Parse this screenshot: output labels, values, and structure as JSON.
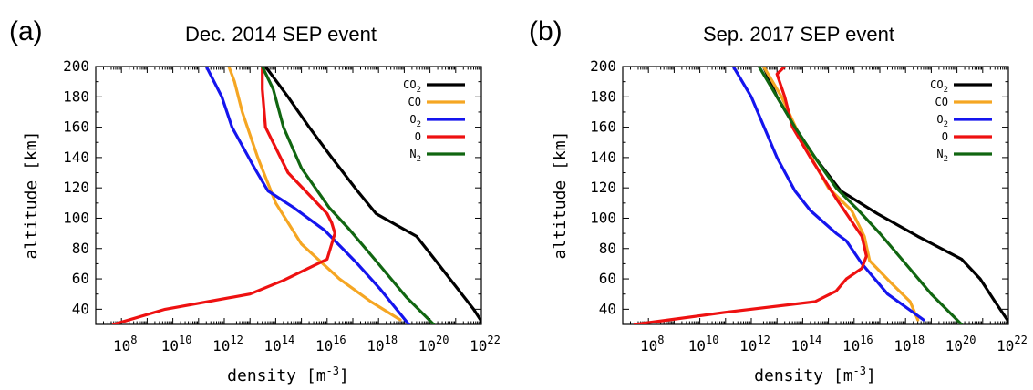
{
  "chart_data": [
    {
      "type": "line",
      "panel_letter": "(a)",
      "title": "Dec. 2014 SEP event",
      "xlabel": "density [m",
      "xlabel_exponent": "-3",
      "xlabel_close": "]",
      "ylabel": "altitude [km]",
      "xscale": "log",
      "xlim": [
        10000000.0,
        1e+22
      ],
      "ylim": [
        30,
        200
      ],
      "x_ticks": [
        {
          "base": "10",
          "exp": "8",
          "value": 100000000.0
        },
        {
          "base": "10",
          "exp": "10",
          "value": 10000000000.0
        },
        {
          "base": "10",
          "exp": "12",
          "value": 1000000000000.0
        },
        {
          "base": "10",
          "exp": "14",
          "value": 100000000000000.0
        },
        {
          "base": "10",
          "exp": "16",
          "value": 1e+16
        },
        {
          "base": "10",
          "exp": "18",
          "value": 1e+18
        },
        {
          "base": "10",
          "exp": "20",
          "value": 1e+20
        },
        {
          "base": "10",
          "exp": "22",
          "value": 1e+22
        }
      ],
      "y_ticks": [
        "40",
        "60",
        "80",
        "100",
        "120",
        "140",
        "160",
        "180",
        "200"
      ],
      "legend_position": "top-right",
      "grid": false,
      "series": [
        {
          "name": "CO",
          "sub": "2",
          "color": "#000000",
          "points": [
            [
              1.2e+22,
              30
            ],
            [
              5e+21,
              40
            ],
            [
              6e+20,
              60
            ],
            [
              1.5e+20,
              73
            ],
            [
              3e+19,
              88
            ],
            [
              8e+17,
              103
            ],
            [
              1.5e+17,
              118
            ],
            [
              1.5e+16,
              140
            ],
            [
              2000000000000000.0,
              160
            ],
            [
              300000000000000.0,
              180
            ],
            [
              40000000000000.0,
              200
            ]
          ]
        },
        {
          "name": "CO",
          "sub": "",
          "color": "#f5a623",
          "points": [
            [
              7e+18,
              33
            ],
            [
              5e+17,
              45
            ],
            [
              3e+16,
              60
            ],
            [
              1000000000000000.0,
              83
            ],
            [
              100000000000000.0,
              110
            ],
            [
              20000000000000.0,
              140
            ],
            [
              5000000000000.0,
              170
            ],
            [
              2500000000000.0,
              190
            ],
            [
              1500000000000.0,
              200
            ]
          ]
        },
        {
          "name": "O",
          "sub": "2",
          "color": "#1515ee",
          "points": [
            [
              1.5e+19,
              30
            ],
            [
              1.2e+18,
              53
            ],
            [
              1.5e+17,
              70
            ],
            [
              8000000000000000.0,
              92
            ],
            [
              500000000000000.0,
              107
            ],
            [
              50000000000000.0,
              118
            ],
            [
              15000000000000.0,
              133
            ],
            [
              2000000000000.0,
              160
            ],
            [
              800000000000.0,
              180
            ],
            [
              200000000000.0,
              200
            ]
          ]
        },
        {
          "name": "O",
          "sub": "",
          "color": "#ee1111",
          "points": [
            [
              50000000.0,
              30
            ],
            [
              5000000000.0,
              40
            ],
            [
              10000000000000.0,
              50
            ],
            [
              200000000000000.0,
              59
            ],
            [
              1e+16,
              73
            ],
            [
              2e+16,
              90
            ],
            [
              1.5e+16,
              97
            ],
            [
              1e+16,
              103
            ],
            [
              300000000000000.0,
              130
            ],
            [
              40000000000000.0,
              160
            ],
            [
              30000000000000.0,
              185
            ],
            [
              30000000000000.0,
              200
            ]
          ]
        },
        {
          "name": "N",
          "sub": "2",
          "color": "#116611",
          "points": [
            [
              1.4e+20,
              30
            ],
            [
              1.2e+19,
              48
            ],
            [
              7e+17,
              73
            ],
            [
              7e+16,
              93
            ],
            [
              1.2e+16,
              107
            ],
            [
              1000000000000000.0,
              133
            ],
            [
              200000000000000.0,
              160
            ],
            [
              80000000000000.0,
              185
            ],
            [
              30000000000000.0,
              200
            ]
          ]
        }
      ]
    },
    {
      "type": "line",
      "panel_letter": "(b)",
      "title": "Sep. 2017 SEP event",
      "xlabel": "density [m",
      "xlabel_exponent": "-3",
      "xlabel_close": "]",
      "ylabel": "altitude [km]",
      "xscale": "log",
      "xlim": [
        10000000.0,
        1e+22
      ],
      "ylim": [
        30,
        200
      ],
      "x_ticks": [
        {
          "base": "10",
          "exp": "8",
          "value": 100000000.0
        },
        {
          "base": "10",
          "exp": "10",
          "value": 10000000000.0
        },
        {
          "base": "10",
          "exp": "12",
          "value": 1000000000000.0
        },
        {
          "base": "10",
          "exp": "14",
          "value": 100000000000000.0
        },
        {
          "base": "10",
          "exp": "16",
          "value": 1e+16
        },
        {
          "base": "10",
          "exp": "18",
          "value": 1e+18
        },
        {
          "base": "10",
          "exp": "20",
          "value": 1e+20
        },
        {
          "base": "10",
          "exp": "22",
          "value": 1e+22
        }
      ],
      "y_ticks": [
        "40",
        "60",
        "80",
        "100",
        "120",
        "140",
        "160",
        "180",
        "200"
      ],
      "legend_position": "top-right",
      "grid": false,
      "series": [
        {
          "name": "CO",
          "sub": "2",
          "color": "#000000",
          "points": [
            [
              1e+22,
              32
            ],
            [
              3e+21,
              45
            ],
            [
              8e+20,
              60
            ],
            [
              1.5e+20,
              73
            ],
            [
              3e+18,
              88
            ],
            [
              8e+16,
              103
            ],
            [
              3000000000000000.0,
              118
            ],
            [
              300000000000000.0,
              140
            ],
            [
              50000000000000.0,
              160
            ],
            [
              10000000000000.0,
              180
            ],
            [
              3000000000000.0,
              200
            ]
          ]
        },
        {
          "name": "CO",
          "sub": "",
          "color": "#f5a623",
          "points": [
            [
              3e+18,
              33
            ],
            [
              1.5e+18,
              45
            ],
            [
              2.5e+17,
              58
            ],
            [
              4e+16,
              72
            ],
            [
              2.5e+16,
              88
            ],
            [
              8000000000000000.0,
              105
            ],
            [
              1000000000000000.0,
              120
            ],
            [
              100000000000000.0,
              150
            ],
            [
              15000000000000.0,
              180
            ],
            [
              3000000000000.0,
              200
            ]
          ]
        },
        {
          "name": "O",
          "sub": "2",
          "color": "#1515ee",
          "points": [
            [
              5e+18,
              33
            ],
            [
              2e+17,
              50
            ],
            [
              2e+16,
              70
            ],
            [
              5000000000000000.0,
              85
            ],
            [
              2000000000000000.0,
              90
            ],
            [
              200000000000000.0,
              105
            ],
            [
              50000000000000.0,
              118
            ],
            [
              10000000000000.0,
              140
            ],
            [
              1000000000000.0,
              180
            ],
            [
              200000000000.0,
              200
            ]
          ]
        },
        {
          "name": "O",
          "sub": "",
          "color": "#ee1111",
          "points": [
            [
              30000000.0,
              30
            ],
            [
              100000000000.0,
              38
            ],
            [
              300000000000000.0,
              45
            ],
            [
              2000000000000000.0,
              52
            ],
            [
              5000000000000000.0,
              60
            ],
            [
              2e+16,
              67
            ],
            [
              3e+16,
              75
            ],
            [
              2e+16,
              88
            ],
            [
              2000000000000000.0,
              113
            ],
            [
              200000000000000.0,
              140
            ],
            [
              40000000000000.0,
              160
            ],
            [
              20000000000000.0,
              180
            ],
            [
              10000000000000.0,
              195
            ],
            [
              20000000000000.0,
              200
            ]
          ]
        },
        {
          "name": "N",
          "sub": "2",
          "color": "#116611",
          "points": [
            [
              1.5e+20,
              30
            ],
            [
              1e+19,
              50
            ],
            [
              1e+18,
              70
            ],
            [
              1e+17,
              90
            ],
            [
              1.5e+16,
              105
            ],
            [
              2000000000000000.0,
              120
            ],
            [
              300000000000000.0,
              140
            ],
            [
              50000000000000.0,
              160
            ],
            [
              10000000000000.0,
              180
            ],
            [
              2000000000000.0,
              200
            ]
          ]
        }
      ]
    }
  ]
}
